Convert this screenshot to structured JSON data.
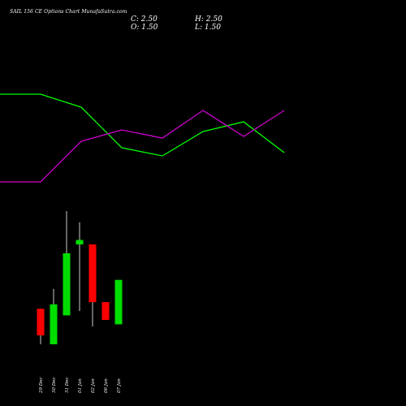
{
  "header": {
    "title": "SAIL  156  CE Options  Chart MunafaSutra.com",
    "close_label": "C:",
    "close_value": "2.50",
    "open_label": "O:",
    "open_value": "1.50",
    "high_label": "H:",
    "high_value": "2.50",
    "low_label": "L:",
    "low_value": "1.50"
  },
  "colors": {
    "background": "#000000",
    "upper_line": "#00ff00",
    "lower_line": "#cc00cc",
    "candle_up": "#00dd00",
    "candle_down": "#ff0000",
    "wick": "#ffffff",
    "text": "#ffffff"
  },
  "chart_data": [
    {
      "type": "line",
      "title": "",
      "xlabel": "",
      "ylabel": "",
      "grid": false,
      "legend": "none",
      "series": [
        {
          "values": [
            72,
            72,
            64,
            39,
            34,
            49,
            55,
            36
          ]
        },
        {
          "values": [
            18,
            18,
            43,
            50,
            45,
            62,
            46,
            62
          ]
        }
      ]
    },
    {
      "type": "candlestick",
      "title": "",
      "xlabel": "",
      "ylabel": "",
      "grid": false,
      "legend": "none",
      "categories": [
        "29 Dec",
        "30 Dec",
        "31 Dec",
        "01 Jan",
        "02 Jan",
        "06 Jan",
        "07 Jan"
      ],
      "candles": [
        {
          "open": 1.85,
          "high": 1.85,
          "low": 1.05,
          "close": 1.25
        },
        {
          "open": 1.05,
          "high": 2.3,
          "low": 1.05,
          "close": 1.95
        },
        {
          "open": 1.7,
          "high": 4.05,
          "low": 1.7,
          "close": 3.1
        },
        {
          "open": 3.3,
          "high": 3.8,
          "low": 1.8,
          "close": 3.4
        },
        {
          "open": 3.3,
          "high": 3.3,
          "low": 1.45,
          "close": 2.0
        },
        {
          "open": 2.0,
          "high": 2.0,
          "low": 1.6,
          "close": 1.6
        },
        {
          "open": 1.5,
          "high": 2.5,
          "low": 1.5,
          "close": 2.5
        }
      ]
    }
  ]
}
